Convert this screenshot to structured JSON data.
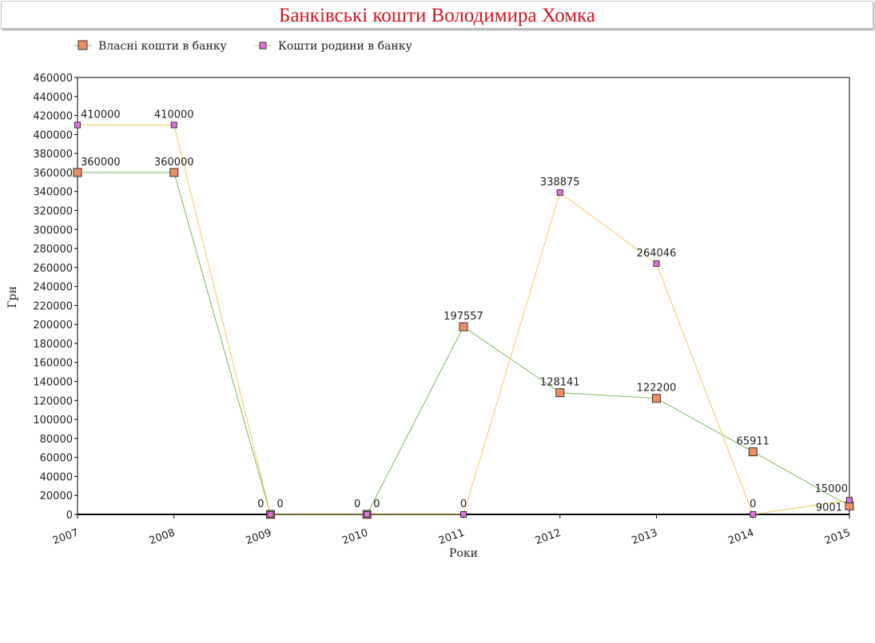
{
  "chart_data": {
    "type": "line",
    "title": "Банківські кошти Володимира Хомка",
    "xlabel": "Роки",
    "ylabel": "Грн",
    "categories": [
      "2007",
      "2008",
      "2009",
      "2010",
      "2011",
      "2012",
      "2013",
      "2014",
      "2015"
    ],
    "ylim": [
      0,
      460000
    ],
    "ytick_step": 20000,
    "legend_position": "top-left",
    "series": [
      {
        "name": "Власні кошти в банку",
        "line_color": "#7cb85e",
        "marker_color": "#f08c64",
        "values": [
          360000,
          360000,
          0,
          0,
          197557,
          128141,
          122200,
          65911,
          9001
        ]
      },
      {
        "name": "Кошти родини в банку",
        "line_color": "#f0cc5a",
        "marker_color": "#e070e0",
        "values": [
          410000,
          410000,
          0,
          0,
          0,
          338875,
          264046,
          0,
          15000
        ]
      }
    ]
  }
}
